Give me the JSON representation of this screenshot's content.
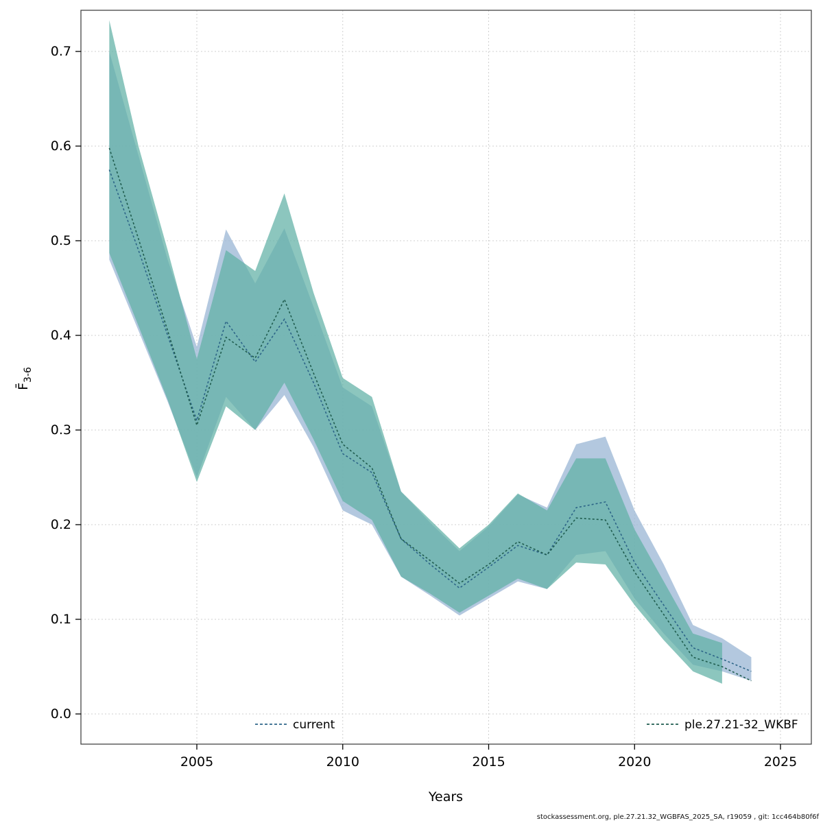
{
  "chart_data": {
    "type": "line",
    "title": "",
    "xlabel": "Years",
    "ylabel_main": "F̄",
    "ylabel_sub": "3-6",
    "footer": "stockassessment.org, ple.27.21.32_WGBFAS_2025_SA, r19059 , git: 1cc464b80f6f",
    "xlim": [
      2001,
      2026.1
    ],
    "ylim": [
      -0.03,
      0.74
    ],
    "grid": true,
    "legend_position": "bottom-inside",
    "x_ticks": [
      {
        "value": 2005,
        "label": "2005"
      },
      {
        "value": 2010,
        "label": "2010"
      },
      {
        "value": 2015,
        "label": "2015"
      },
      {
        "value": 2020,
        "label": "2020"
      },
      {
        "value": 2025,
        "label": "2025"
      }
    ],
    "y_ticks": [
      {
        "value": 0.0,
        "label": "0.0"
      },
      {
        "value": 0.1,
        "label": "0.1"
      },
      {
        "value": 0.2,
        "label": "0.2"
      },
      {
        "value": 0.3,
        "label": "0.3"
      },
      {
        "value": 0.4,
        "label": "0.4"
      },
      {
        "value": 0.5,
        "label": "0.5"
      },
      {
        "value": 0.6,
        "label": "0.6"
      },
      {
        "value": 0.7,
        "label": "0.7"
      }
    ],
    "series": [
      {
        "name": "current",
        "line_color": "#2c6487",
        "band_color": "#9db9d6",
        "band_opacity": 0.78,
        "line_style": "dashed",
        "x": [
          2002,
          2003,
          2004,
          2005,
          2006,
          2007,
          2008,
          2009,
          2010,
          2011,
          2012,
          2013,
          2014,
          2015,
          2016,
          2017,
          2018,
          2019,
          2020,
          2021,
          2022,
          2023,
          2024
        ],
        "y": [
          0.575,
          0.49,
          0.4,
          0.31,
          0.415,
          0.372,
          0.417,
          0.35,
          0.275,
          0.255,
          0.185,
          0.158,
          0.133,
          0.155,
          0.178,
          0.168,
          0.218,
          0.224,
          0.16,
          0.115,
          0.07,
          0.058,
          0.045
        ],
        "band": {
          "x": [
            2002,
            2003,
            2004,
            2005,
            2006,
            2007,
            2008,
            2009,
            2010,
            2011,
            2012,
            2013,
            2014,
            2015,
            2016,
            2017,
            2018,
            2019,
            2020,
            2021,
            2022,
            2023,
            2024
          ],
          "lo": [
            0.48,
            0.405,
            0.33,
            0.25,
            0.335,
            0.3,
            0.337,
            0.282,
            0.215,
            0.2,
            0.145,
            0.125,
            0.104,
            0.122,
            0.14,
            0.132,
            0.168,
            0.172,
            0.122,
            0.085,
            0.052,
            0.045,
            0.035
          ],
          "hi": [
            0.7,
            0.59,
            0.48,
            0.388,
            0.512,
            0.455,
            0.513,
            0.43,
            0.345,
            0.325,
            0.235,
            0.202,
            0.172,
            0.198,
            0.232,
            0.218,
            0.285,
            0.293,
            0.215,
            0.158,
            0.094,
            0.08,
            0.06
          ]
        }
      },
      {
        "name": "ple.27.21-32_WKBF",
        "line_color": "#1f5c4e",
        "band_color": "#5fb0a5",
        "band_opacity": 0.72,
        "line_style": "dashed",
        "x": [
          2002,
          2003,
          2004,
          2005,
          2006,
          2007,
          2008,
          2009,
          2010,
          2011,
          2012,
          2013,
          2014,
          2015,
          2016,
          2017,
          2018,
          2019,
          2020,
          2021,
          2022,
          2023,
          2024
        ],
        "y": [
          0.598,
          0.502,
          0.405,
          0.305,
          0.398,
          0.376,
          0.438,
          0.36,
          0.285,
          0.26,
          0.185,
          0.162,
          0.138,
          0.158,
          0.182,
          0.168,
          0.207,
          0.205,
          0.15,
          0.105,
          0.06,
          0.05,
          0.035
        ],
        "band": {
          "x": [
            2002,
            2003,
            2004,
            2005,
            2006,
            2007,
            2008,
            2009,
            2010,
            2011,
            2012,
            2013,
            2014,
            2015,
            2016,
            2017,
            2018,
            2019,
            2020,
            2021,
            2022,
            2023
          ],
          "lo": [
            0.487,
            0.41,
            0.332,
            0.245,
            0.325,
            0.3,
            0.35,
            0.29,
            0.225,
            0.205,
            0.145,
            0.127,
            0.107,
            0.125,
            0.143,
            0.132,
            0.16,
            0.158,
            0.115,
            0.078,
            0.045,
            0.032
          ],
          "hi": [
            0.733,
            0.6,
            0.49,
            0.375,
            0.49,
            0.468,
            0.55,
            0.445,
            0.355,
            0.335,
            0.235,
            0.205,
            0.175,
            0.2,
            0.233,
            0.215,
            0.27,
            0.27,
            0.195,
            0.14,
            0.085,
            0.075
          ]
        }
      }
    ]
  }
}
